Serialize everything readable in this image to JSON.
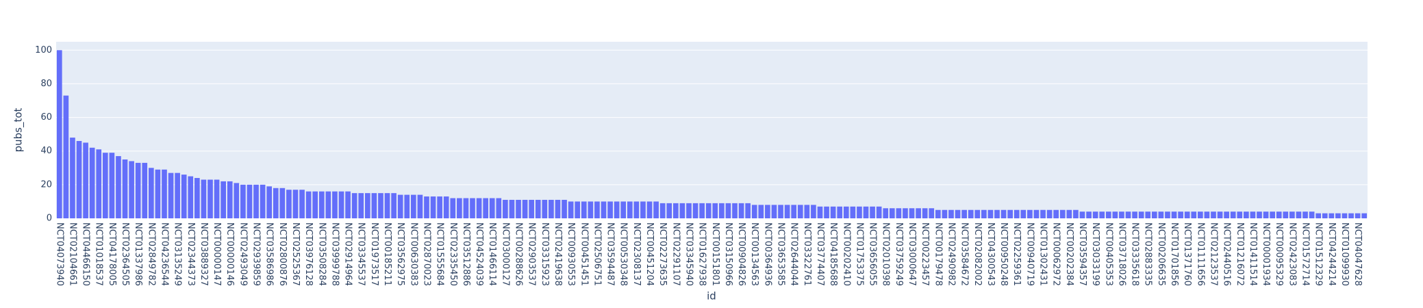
{
  "chart_data": {
    "type": "bar",
    "x_label": "id",
    "y_label": "pubs_tot",
    "color": "#636efa",
    "grid": true,
    "ylim": [
      0,
      105
    ],
    "yticks": [
      0,
      20,
      40,
      60,
      80,
      100
    ],
    "categories": [
      "NCT04073940",
      null,
      "NCT02104661",
      null,
      "NCT04466150",
      null,
      "NCT01018537",
      null,
      "NCT04178005",
      null,
      "NCT02364505",
      null,
      "NCT01337986",
      null,
      "NCT02849782",
      null,
      "NCT04236544",
      null,
      "NCT03135249",
      null,
      "NCT02344373",
      null,
      "NCT03889327",
      null,
      "NCT00000147",
      null,
      "NCT00000146",
      null,
      "NCT02493049",
      null,
      "NCT02939859",
      null,
      "NCT03586986",
      null,
      "NCT02800876",
      null,
      "NCT02525367",
      null,
      "NCT03976128",
      null,
      "NCT03508284",
      null,
      "NCT03999788",
      null,
      "NCT02914964",
      null,
      "NCT03345537",
      null,
      "NCT01973517",
      null,
      "NCT00185211",
      null,
      "NCT03562975",
      null,
      "NCT00630383",
      null,
      "NCT02870023",
      null,
      "NCT01555684",
      null,
      "NCT02335450",
      null,
      "NCT03512886",
      null,
      "NCT04524039",
      null,
      "NCT01466114",
      null,
      "NCT03000127",
      null,
      "NCT00288626",
      null,
      "NCT02903537",
      null,
      "NCT03315923",
      null,
      "NCT02419638",
      null,
      "NCT00930553",
      null,
      "NCT00451451",
      null,
      "NCT02506751",
      null,
      "NCT03594487",
      null,
      "NCT00530348",
      null,
      "NCT02308137",
      null,
      "NCT00451204",
      null,
      "NCT02273635",
      null,
      "NCT02291107",
      null,
      "NCT03345940",
      null,
      "NCT01627938",
      null,
      "NCT00151801",
      null,
      "NCT03150966",
      null,
      "NCT00904826",
      null,
      "NCT00134563",
      null,
      "NCT00364936",
      null,
      "NCT03653585",
      null,
      "NCT02644044",
      null,
      "NCT03322761",
      null,
      "NCT03774407",
      null,
      "NCT04185688",
      null,
      "NCT00202410",
      null,
      "NCT01753375",
      null,
      "NCT03656055",
      null,
      "NCT02010398",
      null,
      "NCT03759249",
      null,
      "NCT03000647",
      null,
      "NCT00223457",
      null,
      "NCT00179478",
      null,
      "NCT02490982",
      null,
      "NCT03584672",
      null,
      "NCT02082002",
      null,
      "NCT04300543",
      null,
      "NCT00950248",
      null,
      "NCT02259361",
      null,
      "NCT00940719",
      null,
      "NCT01302431",
      null,
      "NCT00062972",
      null,
      "NCT00202384",
      null,
      "NCT03594357",
      null,
      "NCT03033199",
      null,
      "NCT00405353",
      null,
      "NCT03718026",
      null,
      "NCT03335618",
      null,
      "NCT02883335",
      null,
      "NCT00206635",
      null,
      "NCT01701856",
      null,
      "NCT01371760",
      null,
      "NCT01111656",
      null,
      "NCT02123537",
      null,
      "NCT02440516",
      null,
      "NCT01216072",
      null,
      "NCT01411514",
      null,
      "NCT00001934",
      null,
      "NCT00095329",
      null,
      "NCT02423083",
      null,
      "NCT01572714",
      null,
      "NCT01512329",
      null,
      "NCT04244214",
      null,
      "NCT01099930",
      null,
      "NCT04047628",
      null
    ],
    "values": [
      100,
      73,
      48,
      46,
      45,
      42,
      41,
      39,
      39,
      37,
      35,
      34,
      33,
      33,
      30,
      29,
      29,
      27,
      27,
      26,
      25,
      24,
      23,
      23,
      23,
      22,
      22,
      21,
      20,
      20,
      20,
      20,
      19,
      18,
      18,
      17,
      17,
      17,
      16,
      16,
      16,
      16,
      16,
      16,
      16,
      15,
      15,
      15,
      15,
      15,
      15,
      15,
      14,
      14,
      14,
      14,
      13,
      13,
      13,
      13,
      12,
      12,
      12,
      12,
      12,
      12,
      12,
      12,
      11,
      11,
      11,
      11,
      11,
      11,
      11,
      11,
      11,
      11,
      10,
      10,
      10,
      10,
      10,
      10,
      10,
      10,
      10,
      10,
      10,
      10,
      10,
      10,
      9,
      9,
      9,
      9,
      9,
      9,
      9,
      9,
      9,
      9,
      9,
      9,
      9,
      9,
      8,
      8,
      8,
      8,
      8,
      8,
      8,
      8,
      8,
      8,
      7,
      7,
      7,
      7,
      7,
      7,
      7,
      7,
      7,
      7,
      6,
      6,
      6,
      6,
      6,
      6,
      6,
      6,
      5,
      5,
      5,
      5,
      5,
      5,
      5,
      5,
      5,
      5,
      5,
      5,
      5,
      5,
      5,
      5,
      5,
      5,
      5,
      5,
      5,
      5,
      4,
      4,
      4,
      4,
      4,
      4,
      4,
      4,
      4,
      4,
      4,
      4,
      4,
      4,
      4,
      4,
      4,
      4,
      4,
      4,
      4,
      4,
      4,
      4,
      4,
      4,
      4,
      4,
      4,
      4,
      4,
      4,
      4,
      4,
      4,
      4,
      3,
      3,
      3,
      3,
      3,
      3,
      3,
      3
    ]
  }
}
